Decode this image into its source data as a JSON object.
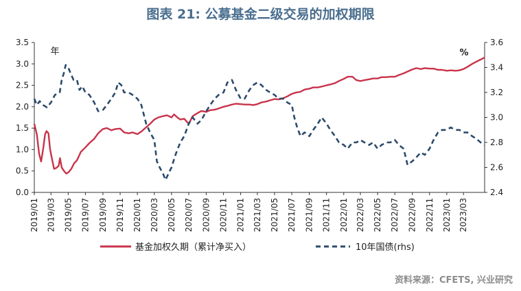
{
  "title": "图表 21: 公募基金二级交易的加权期限",
  "source": "资料来源：CFETS, 兴业研究",
  "colors": {
    "title": "#4a6e8e",
    "series_left": "#c8334a",
    "series_right": "#2c4a6b",
    "source": "#8c8c8c"
  },
  "chart_data": {
    "type": "line",
    "left_axis": {
      "unit_label": "年",
      "ylim": [
        0,
        3.5
      ],
      "ticks": [
        "0.0",
        "0.5",
        "1.0",
        "1.5",
        "2.0",
        "2.5",
        "3.0",
        "3.5"
      ]
    },
    "right_axis": {
      "unit_label": "%",
      "ylim": [
        2.4,
        3.6
      ],
      "ticks": [
        "2.4",
        "2.6",
        "2.8",
        "3.0",
        "3.2",
        "3.4",
        "3.6"
      ]
    },
    "x_ticks": [
      "2019/01",
      "2019/03",
      "2019/05",
      "2019/07",
      "2019/09",
      "2019/11",
      "2020/01",
      "2020/03",
      "2020/05",
      "2020/07",
      "2020/09",
      "2020/11",
      "2021/01",
      "2021/03",
      "2021/05",
      "2021/07",
      "2021/09",
      "2021/11",
      "2022/01",
      "2022/03",
      "2022/05",
      "2022/07",
      "2022/09",
      "2022/11",
      "2023/01",
      "2023/03"
    ],
    "x_range": [
      "2019-01-01",
      "2023-05-15"
    ],
    "legend_position": "bottom",
    "series": [
      {
        "name": "基金加权久期（累计净买入）",
        "axis": "left",
        "style": "solid",
        "points": [
          [
            "2019-01-01",
            1.6
          ],
          [
            "2019-01-10",
            1.35
          ],
          [
            "2019-01-18",
            0.9
          ],
          [
            "2019-01-25",
            0.72
          ],
          [
            "2019-02-02",
            1.05
          ],
          [
            "2019-02-08",
            1.35
          ],
          [
            "2019-02-13",
            1.43
          ],
          [
            "2019-02-20",
            1.38
          ],
          [
            "2019-02-26",
            1.0
          ],
          [
            "2019-03-04",
            0.8
          ],
          [
            "2019-03-12",
            0.55
          ],
          [
            "2019-03-20",
            0.57
          ],
          [
            "2019-03-28",
            0.62
          ],
          [
            "2019-04-02",
            0.8
          ],
          [
            "2019-04-08",
            0.58
          ],
          [
            "2019-04-16",
            0.5
          ],
          [
            "2019-04-24",
            0.44
          ],
          [
            "2019-05-02",
            0.47
          ],
          [
            "2019-05-12",
            0.55
          ],
          [
            "2019-05-22",
            0.68
          ],
          [
            "2019-06-01",
            0.75
          ],
          [
            "2019-06-15",
            0.95
          ],
          [
            "2019-07-01",
            1.05
          ],
          [
            "2019-07-15",
            1.15
          ],
          [
            "2019-08-01",
            1.25
          ],
          [
            "2019-08-15",
            1.38
          ],
          [
            "2019-09-01",
            1.48
          ],
          [
            "2019-09-15",
            1.5
          ],
          [
            "2019-10-01",
            1.45
          ],
          [
            "2019-10-15",
            1.48
          ],
          [
            "2019-11-01",
            1.49
          ],
          [
            "2019-11-15",
            1.4
          ],
          [
            "2019-12-01",
            1.38
          ],
          [
            "2019-12-15",
            1.4
          ],
          [
            "2020-01-01",
            1.36
          ],
          [
            "2020-01-15",
            1.42
          ],
          [
            "2020-02-01",
            1.52
          ],
          [
            "2020-02-15",
            1.6
          ],
          [
            "2020-03-01",
            1.7
          ],
          [
            "2020-03-15",
            1.75
          ],
          [
            "2020-04-01",
            1.78
          ],
          [
            "2020-04-15",
            1.8
          ],
          [
            "2020-05-01",
            1.75
          ],
          [
            "2020-05-10",
            1.82
          ],
          [
            "2020-05-20",
            1.76
          ],
          [
            "2020-06-01",
            1.7
          ],
          [
            "2020-06-15",
            1.72
          ],
          [
            "2020-07-01",
            1.6
          ],
          [
            "2020-07-15",
            1.78
          ],
          [
            "2020-08-01",
            1.85
          ],
          [
            "2020-08-15",
            1.9
          ],
          [
            "2020-09-01",
            1.88
          ],
          [
            "2020-09-15",
            1.92
          ],
          [
            "2020-10-01",
            1.93
          ],
          [
            "2020-10-15",
            1.96
          ],
          [
            "2020-11-01",
            2.0
          ],
          [
            "2020-11-15",
            2.02
          ],
          [
            "2020-12-01",
            2.05
          ],
          [
            "2020-12-15",
            2.07
          ],
          [
            "2021-01-01",
            2.06
          ],
          [
            "2021-01-15",
            2.05
          ],
          [
            "2021-02-01",
            2.05
          ],
          [
            "2021-02-15",
            2.04
          ],
          [
            "2021-03-01",
            2.06
          ],
          [
            "2021-03-15",
            2.1
          ],
          [
            "2021-04-01",
            2.12
          ],
          [
            "2021-04-15",
            2.15
          ],
          [
            "2021-05-01",
            2.18
          ],
          [
            "2021-05-15",
            2.17
          ],
          [
            "2021-06-01",
            2.2
          ],
          [
            "2021-06-15",
            2.24
          ],
          [
            "2021-07-01",
            2.3
          ],
          [
            "2021-07-15",
            2.33
          ],
          [
            "2021-08-01",
            2.35
          ],
          [
            "2021-08-15",
            2.4
          ],
          [
            "2021-09-01",
            2.42
          ],
          [
            "2021-09-15",
            2.45
          ],
          [
            "2021-10-01",
            2.45
          ],
          [
            "2021-10-15",
            2.47
          ],
          [
            "2021-11-01",
            2.5
          ],
          [
            "2021-11-15",
            2.52
          ],
          [
            "2021-12-01",
            2.55
          ],
          [
            "2021-12-15",
            2.6
          ],
          [
            "2022-01-01",
            2.65
          ],
          [
            "2022-01-15",
            2.7
          ],
          [
            "2022-02-01",
            2.7
          ],
          [
            "2022-02-15",
            2.62
          ],
          [
            "2022-03-01",
            2.6
          ],
          [
            "2022-03-15",
            2.62
          ],
          [
            "2022-04-01",
            2.64
          ],
          [
            "2022-04-15",
            2.66
          ],
          [
            "2022-05-01",
            2.66
          ],
          [
            "2022-05-15",
            2.69
          ],
          [
            "2022-06-01",
            2.69
          ],
          [
            "2022-06-15",
            2.7
          ],
          [
            "2022-07-01",
            2.7
          ],
          [
            "2022-07-15",
            2.74
          ],
          [
            "2022-08-01",
            2.78
          ],
          [
            "2022-08-15",
            2.82
          ],
          [
            "2022-09-01",
            2.87
          ],
          [
            "2022-09-15",
            2.9
          ],
          [
            "2022-10-01",
            2.88
          ],
          [
            "2022-10-15",
            2.9
          ],
          [
            "2022-11-01",
            2.89
          ],
          [
            "2022-11-15",
            2.89
          ],
          [
            "2022-12-01",
            2.86
          ],
          [
            "2022-12-15",
            2.86
          ],
          [
            "2023-01-01",
            2.84
          ],
          [
            "2023-01-15",
            2.85
          ],
          [
            "2023-02-01",
            2.84
          ],
          [
            "2023-02-15",
            2.85
          ],
          [
            "2023-03-01",
            2.88
          ],
          [
            "2023-03-15",
            2.93
          ],
          [
            "2023-04-01",
            3.0
          ],
          [
            "2023-04-15",
            3.05
          ],
          [
            "2023-05-01",
            3.1
          ],
          [
            "2023-05-15",
            3.15
          ]
        ]
      },
      {
        "name": "10年国债(rhs)",
        "axis": "right",
        "style": "dashed",
        "points": [
          [
            "2019-01-01",
            3.15
          ],
          [
            "2019-01-10",
            3.1
          ],
          [
            "2019-01-20",
            3.13
          ],
          [
            "2019-02-01",
            3.1
          ],
          [
            "2019-02-15",
            3.08
          ],
          [
            "2019-03-01",
            3.12
          ],
          [
            "2019-03-15",
            3.18
          ],
          [
            "2019-04-01",
            3.2
          ],
          [
            "2019-04-08",
            3.3
          ],
          [
            "2019-04-15",
            3.35
          ],
          [
            "2019-04-22",
            3.42
          ],
          [
            "2019-05-01",
            3.4
          ],
          [
            "2019-05-10",
            3.35
          ],
          [
            "2019-05-20",
            3.3
          ],
          [
            "2019-06-01",
            3.3
          ],
          [
            "2019-06-10",
            3.22
          ],
          [
            "2019-06-20",
            3.25
          ],
          [
            "2019-07-01",
            3.2
          ],
          [
            "2019-07-15",
            3.18
          ],
          [
            "2019-08-01",
            3.12
          ],
          [
            "2019-08-15",
            3.05
          ],
          [
            "2019-09-01",
            3.06
          ],
          [
            "2019-09-15",
            3.1
          ],
          [
            "2019-10-01",
            3.15
          ],
          [
            "2019-10-15",
            3.2
          ],
          [
            "2019-10-25",
            3.28
          ],
          [
            "2019-11-05",
            3.26
          ],
          [
            "2019-11-15",
            3.2
          ],
          [
            "2019-12-01",
            3.2
          ],
          [
            "2019-12-15",
            3.18
          ],
          [
            "2020-01-01",
            3.15
          ],
          [
            "2020-01-15",
            3.1
          ],
          [
            "2020-02-01",
            2.95
          ],
          [
            "2020-02-15",
            2.88
          ],
          [
            "2020-03-01",
            2.82
          ],
          [
            "2020-03-10",
            2.65
          ],
          [
            "2020-03-20",
            2.6
          ],
          [
            "2020-04-01",
            2.55
          ],
          [
            "2020-04-10",
            2.5
          ],
          [
            "2020-04-20",
            2.55
          ],
          [
            "2020-05-01",
            2.6
          ],
          [
            "2020-05-15",
            2.7
          ],
          [
            "2020-06-01",
            2.8
          ],
          [
            "2020-06-15",
            2.85
          ],
          [
            "2020-07-01",
            2.95
          ],
          [
            "2020-07-15",
            3.0
          ],
          [
            "2020-08-01",
            2.95
          ],
          [
            "2020-08-15",
            2.98
          ],
          [
            "2020-09-01",
            3.05
          ],
          [
            "2020-09-15",
            3.1
          ],
          [
            "2020-10-01",
            3.15
          ],
          [
            "2020-10-15",
            3.18
          ],
          [
            "2020-11-01",
            3.2
          ],
          [
            "2020-11-15",
            3.28
          ],
          [
            "2020-12-01",
            3.3
          ],
          [
            "2020-12-15",
            3.22
          ],
          [
            "2021-01-01",
            3.15
          ],
          [
            "2021-01-15",
            3.15
          ],
          [
            "2021-02-01",
            3.22
          ],
          [
            "2021-02-15",
            3.26
          ],
          [
            "2021-03-01",
            3.28
          ],
          [
            "2021-03-15",
            3.26
          ],
          [
            "2021-04-01",
            3.22
          ],
          [
            "2021-04-15",
            3.2
          ],
          [
            "2021-05-01",
            3.18
          ],
          [
            "2021-05-15",
            3.15
          ],
          [
            "2021-06-01",
            3.15
          ],
          [
            "2021-06-15",
            3.12
          ],
          [
            "2021-07-01",
            3.1
          ],
          [
            "2021-07-10",
            3.0
          ],
          [
            "2021-07-20",
            2.92
          ],
          [
            "2021-08-01",
            2.85
          ],
          [
            "2021-08-15",
            2.88
          ],
          [
            "2021-09-01",
            2.85
          ],
          [
            "2021-09-15",
            2.9
          ],
          [
            "2021-10-01",
            2.95
          ],
          [
            "2021-10-15",
            3.0
          ],
          [
            "2021-11-01",
            2.95
          ],
          [
            "2021-11-15",
            2.9
          ],
          [
            "2021-12-01",
            2.85
          ],
          [
            "2021-12-15",
            2.8
          ],
          [
            "2022-01-01",
            2.78
          ],
          [
            "2022-01-15",
            2.75
          ],
          [
            "2022-02-01",
            2.8
          ],
          [
            "2022-02-15",
            2.8
          ],
          [
            "2022-03-01",
            2.82
          ],
          [
            "2022-03-15",
            2.8
          ],
          [
            "2022-04-01",
            2.78
          ],
          [
            "2022-04-15",
            2.8
          ],
          [
            "2022-05-01",
            2.75
          ],
          [
            "2022-05-15",
            2.78
          ],
          [
            "2022-06-01",
            2.8
          ],
          [
            "2022-06-15",
            2.8
          ],
          [
            "2022-07-01",
            2.82
          ],
          [
            "2022-07-15",
            2.78
          ],
          [
            "2022-08-01",
            2.75
          ],
          [
            "2022-08-15",
            2.62
          ],
          [
            "2022-09-01",
            2.65
          ],
          [
            "2022-09-15",
            2.68
          ],
          [
            "2022-10-01",
            2.72
          ],
          [
            "2022-10-15",
            2.7
          ],
          [
            "2022-11-01",
            2.75
          ],
          [
            "2022-11-15",
            2.82
          ],
          [
            "2022-12-01",
            2.88
          ],
          [
            "2022-12-15",
            2.9
          ],
          [
            "2023-01-01",
            2.9
          ],
          [
            "2023-01-15",
            2.92
          ],
          [
            "2023-02-01",
            2.9
          ],
          [
            "2023-02-15",
            2.9
          ],
          [
            "2023-03-01",
            2.88
          ],
          [
            "2023-03-15",
            2.88
          ],
          [
            "2023-04-01",
            2.85
          ],
          [
            "2023-04-15",
            2.83
          ],
          [
            "2023-05-01",
            2.8
          ],
          [
            "2023-05-15",
            2.78
          ]
        ]
      }
    ]
  }
}
